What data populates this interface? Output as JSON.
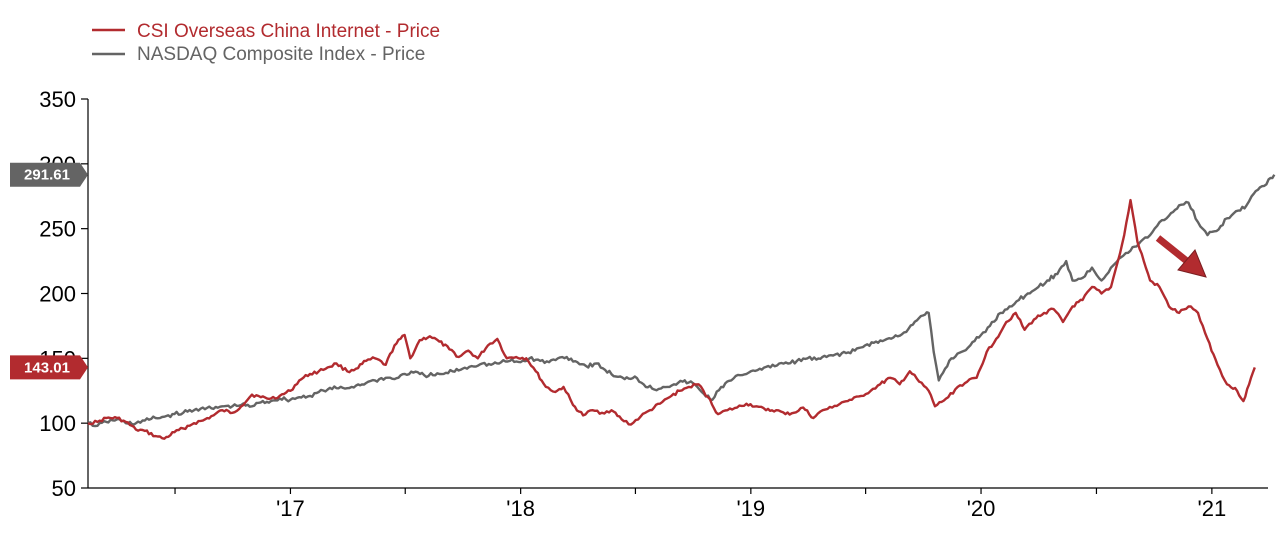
{
  "chart_data": {
    "type": "line",
    "title": "",
    "xlabel": "",
    "ylabel": "",
    "ylim": [
      50,
      350
    ],
    "yticks": [
      50,
      100,
      150,
      200,
      250,
      300,
      350
    ],
    "xlim": [
      "2016-02-15",
      "2021-03-31"
    ],
    "xtick_labels": [
      {
        "date": "2017-01-01",
        "label": "'17"
      },
      {
        "date": "2018-01-01",
        "label": "'18"
      },
      {
        "date": "2019-01-01",
        "label": "'19"
      },
      {
        "date": "2020-01-01",
        "label": "'20"
      },
      {
        "date": "2021-01-01",
        "label": "'21"
      }
    ],
    "x_minor_tick_dates": [
      "2016-07-02",
      "2017-07-02",
      "2018-07-02",
      "2019-07-02",
      "2020-07-02"
    ],
    "grid": false,
    "legend_position": "top-left",
    "series": [
      {
        "name": "CSI Overseas China Internet - Price",
        "color": "#b22b2f",
        "end_label": "143.01",
        "end_value": 143.01,
        "points": [
          [
            "2016-02-15",
            100
          ],
          [
            "2016-03-01",
            101
          ],
          [
            "2016-03-15",
            104
          ],
          [
            "2016-04-01",
            104
          ],
          [
            "2016-04-15",
            101
          ],
          [
            "2016-05-01",
            95
          ],
          [
            "2016-05-15",
            94
          ],
          [
            "2016-06-01",
            90
          ],
          [
            "2016-06-15",
            88
          ],
          [
            "2016-07-01",
            93
          ],
          [
            "2016-07-15",
            96
          ],
          [
            "2016-08-01",
            100
          ],
          [
            "2016-08-15",
            102
          ],
          [
            "2016-09-01",
            106
          ],
          [
            "2016-09-15",
            110
          ],
          [
            "2016-10-01",
            108
          ],
          [
            "2016-10-15",
            113
          ],
          [
            "2016-11-01",
            122
          ],
          [
            "2016-11-15",
            120
          ],
          [
            "2016-12-01",
            119
          ],
          [
            "2016-12-15",
            121
          ],
          [
            "2017-01-01",
            125
          ],
          [
            "2017-01-15",
            133
          ],
          [
            "2017-02-01",
            138
          ],
          [
            "2017-02-15",
            140
          ],
          [
            "2017-03-01",
            143
          ],
          [
            "2017-03-15",
            146
          ],
          [
            "2017-04-01",
            140
          ],
          [
            "2017-04-15",
            142
          ],
          [
            "2017-05-01",
            148
          ],
          [
            "2017-05-15",
            150
          ],
          [
            "2017-06-01",
            145
          ],
          [
            "2017-06-15",
            160
          ],
          [
            "2017-07-01",
            168
          ],
          [
            "2017-07-10",
            150
          ],
          [
            "2017-07-25",
            164
          ],
          [
            "2017-08-10",
            167
          ],
          [
            "2017-08-25",
            163
          ],
          [
            "2017-09-10",
            157
          ],
          [
            "2017-09-25",
            151
          ],
          [
            "2017-10-10",
            156
          ],
          [
            "2017-10-25",
            150
          ],
          [
            "2017-11-10",
            160
          ],
          [
            "2017-11-25",
            165
          ],
          [
            "2017-12-10",
            150
          ],
          [
            "2017-12-25",
            151
          ],
          [
            "2018-01-10",
            150
          ],
          [
            "2018-01-25",
            140
          ],
          [
            "2018-02-10",
            128
          ],
          [
            "2018-02-25",
            124
          ],
          [
            "2018-03-10",
            128
          ],
          [
            "2018-03-25",
            114
          ],
          [
            "2018-04-10",
            106
          ],
          [
            "2018-04-25",
            110
          ],
          [
            "2018-05-10",
            108
          ],
          [
            "2018-05-25",
            110
          ],
          [
            "2018-06-10",
            103
          ],
          [
            "2018-06-25",
            99
          ],
          [
            "2018-07-10",
            105
          ],
          [
            "2018-07-25",
            110
          ],
          [
            "2018-08-10",
            115
          ],
          [
            "2018-08-25",
            120
          ],
          [
            "2018-09-10",
            125
          ],
          [
            "2018-09-25",
            128
          ],
          [
            "2018-10-10",
            130
          ],
          [
            "2018-10-25",
            120
          ],
          [
            "2018-11-10",
            107
          ],
          [
            "2018-11-25",
            110
          ],
          [
            "2018-12-10",
            112
          ],
          [
            "2018-12-25",
            115
          ],
          [
            "2019-01-10",
            113
          ],
          [
            "2019-01-25",
            110
          ],
          [
            "2019-02-10",
            110
          ],
          [
            "2019-02-25",
            107
          ],
          [
            "2019-03-10",
            108
          ],
          [
            "2019-03-25",
            112
          ],
          [
            "2019-04-10",
            104
          ],
          [
            "2019-04-25",
            110
          ],
          [
            "2019-05-10",
            112
          ],
          [
            "2019-05-25",
            116
          ],
          [
            "2019-06-10",
            118
          ],
          [
            "2019-06-25",
            121
          ],
          [
            "2019-07-10",
            125
          ],
          [
            "2019-07-25",
            130
          ],
          [
            "2019-08-10",
            135
          ],
          [
            "2019-08-25",
            130
          ],
          [
            "2019-09-10",
            140
          ],
          [
            "2019-09-25",
            132
          ],
          [
            "2019-10-10",
            125
          ],
          [
            "2019-10-20",
            113
          ],
          [
            "2019-11-10",
            120
          ],
          [
            "2019-11-25",
            128
          ],
          [
            "2019-12-10",
            132
          ],
          [
            "2019-12-25",
            135
          ],
          [
            "2020-01-10",
            155
          ],
          [
            "2020-01-25",
            165
          ],
          [
            "2020-02-10",
            178
          ],
          [
            "2020-02-25",
            185
          ],
          [
            "2020-03-10",
            172
          ],
          [
            "2020-03-25",
            180
          ],
          [
            "2020-04-10",
            185
          ],
          [
            "2020-04-25",
            188
          ],
          [
            "2020-05-10",
            178
          ],
          [
            "2020-05-25",
            190
          ],
          [
            "2020-06-10",
            195
          ],
          [
            "2020-06-25",
            205
          ],
          [
            "2020-07-10",
            200
          ],
          [
            "2020-07-25",
            205
          ],
          [
            "2020-08-05",
            225
          ],
          [
            "2020-08-15",
            245
          ],
          [
            "2020-08-25",
            272
          ],
          [
            "2020-09-05",
            240
          ],
          [
            "2020-09-15",
            225
          ],
          [
            "2020-09-25",
            210
          ],
          [
            "2020-10-10",
            205
          ],
          [
            "2020-10-25",
            190
          ],
          [
            "2020-11-10",
            185
          ],
          [
            "2020-11-25",
            190
          ],
          [
            "2020-12-10",
            185
          ],
          [
            "2020-12-25",
            165
          ],
          [
            "2021-01-10",
            145
          ],
          [
            "2021-01-25",
            130
          ],
          [
            "2021-02-10",
            125
          ],
          [
            "2021-02-20",
            117
          ],
          [
            "2021-03-01",
            130
          ],
          [
            "2021-03-10",
            143.01
          ]
        ]
      },
      {
        "name": "NASDAQ Composite Index - Price",
        "color": "#646464",
        "end_label": "291.61",
        "end_value": 291.61,
        "points": [
          [
            "2016-02-15",
            100
          ],
          [
            "2016-03-01",
            98
          ],
          [
            "2016-03-15",
            101
          ],
          [
            "2016-04-01",
            103
          ],
          [
            "2016-04-15",
            100
          ],
          [
            "2016-05-01",
            100
          ],
          [
            "2016-05-15",
            102
          ],
          [
            "2016-06-01",
            104
          ],
          [
            "2016-06-15",
            105
          ],
          [
            "2016-07-01",
            107
          ],
          [
            "2016-07-15",
            108
          ],
          [
            "2016-08-01",
            110
          ],
          [
            "2016-08-15",
            112
          ],
          [
            "2016-09-01",
            111
          ],
          [
            "2016-09-15",
            113
          ],
          [
            "2016-10-01",
            113
          ],
          [
            "2016-10-15",
            114
          ],
          [
            "2016-11-01",
            113
          ],
          [
            "2016-11-15",
            116
          ],
          [
            "2016-12-01",
            117
          ],
          [
            "2016-12-15",
            119
          ],
          [
            "2017-01-01",
            118
          ],
          [
            "2017-01-15",
            120
          ],
          [
            "2017-02-01",
            121
          ],
          [
            "2017-02-15",
            124
          ],
          [
            "2017-03-01",
            126
          ],
          [
            "2017-03-15",
            127
          ],
          [
            "2017-04-01",
            127
          ],
          [
            "2017-04-15",
            129
          ],
          [
            "2017-05-01",
            131
          ],
          [
            "2017-05-15",
            133
          ],
          [
            "2017-06-01",
            135
          ],
          [
            "2017-06-15",
            134
          ],
          [
            "2017-07-01",
            138
          ],
          [
            "2017-07-15",
            139
          ],
          [
            "2017-08-01",
            137
          ],
          [
            "2017-08-15",
            137
          ],
          [
            "2017-09-01",
            138
          ],
          [
            "2017-09-15",
            140
          ],
          [
            "2017-10-01",
            142
          ],
          [
            "2017-10-15",
            144
          ],
          [
            "2017-11-01",
            146
          ],
          [
            "2017-11-15",
            145
          ],
          [
            "2017-12-01",
            147
          ],
          [
            "2017-12-15",
            148
          ],
          [
            "2018-01-01",
            147
          ],
          [
            "2018-01-15",
            150
          ],
          [
            "2018-02-01",
            148
          ],
          [
            "2018-02-15",
            147
          ],
          [
            "2018-03-01",
            150
          ],
          [
            "2018-03-15",
            151
          ],
          [
            "2018-04-01",
            147
          ],
          [
            "2018-04-15",
            144
          ],
          [
            "2018-05-01",
            146
          ],
          [
            "2018-05-15",
            141
          ],
          [
            "2018-06-01",
            136
          ],
          [
            "2018-06-15",
            134
          ],
          [
            "2018-07-01",
            136
          ],
          [
            "2018-07-15",
            130
          ],
          [
            "2018-08-01",
            126
          ],
          [
            "2018-08-15",
            128
          ],
          [
            "2018-09-01",
            130
          ],
          [
            "2018-09-15",
            132
          ],
          [
            "2018-10-01",
            131
          ],
          [
            "2018-10-15",
            124
          ],
          [
            "2018-11-01",
            118
          ],
          [
            "2018-11-15",
            128
          ],
          [
            "2018-12-01",
            133
          ],
          [
            "2018-12-15",
            137
          ],
          [
            "2019-01-01",
            140
          ],
          [
            "2019-01-15",
            142
          ],
          [
            "2019-02-01",
            143
          ],
          [
            "2019-02-15",
            146
          ],
          [
            "2019-03-01",
            146
          ],
          [
            "2019-03-15",
            148
          ],
          [
            "2019-04-01",
            150
          ],
          [
            "2019-04-15",
            149
          ],
          [
            "2019-05-01",
            151
          ],
          [
            "2019-05-15",
            153
          ],
          [
            "2019-06-01",
            154
          ],
          [
            "2019-06-15",
            156
          ],
          [
            "2019-07-01",
            160
          ],
          [
            "2019-07-15",
            162
          ],
          [
            "2019-08-01",
            164
          ],
          [
            "2019-08-15",
            166
          ],
          [
            "2019-09-01",
            170
          ],
          [
            "2019-09-15",
            176
          ],
          [
            "2019-10-01",
            183
          ],
          [
            "2019-10-10",
            185
          ],
          [
            "2019-10-18",
            155
          ],
          [
            "2019-10-26",
            133
          ],
          [
            "2019-11-05",
            142
          ],
          [
            "2019-11-15",
            150
          ],
          [
            "2019-12-01",
            155
          ],
          [
            "2019-12-15",
            160
          ],
          [
            "2020-01-01",
            168
          ],
          [
            "2020-01-15",
            175
          ],
          [
            "2020-02-01",
            185
          ],
          [
            "2020-02-15",
            190
          ],
          [
            "2020-03-01",
            195
          ],
          [
            "2020-03-15",
            200
          ],
          [
            "2020-04-01",
            205
          ],
          [
            "2020-04-15",
            210
          ],
          [
            "2020-05-01",
            215
          ],
          [
            "2020-05-15",
            225
          ],
          [
            "2020-05-25",
            210
          ],
          [
            "2020-06-10",
            212
          ],
          [
            "2020-06-25",
            220
          ],
          [
            "2020-07-10",
            210
          ],
          [
            "2020-07-25",
            220
          ],
          [
            "2020-08-10",
            228
          ],
          [
            "2020-08-25",
            233
          ],
          [
            "2020-09-10",
            240
          ],
          [
            "2020-09-25",
            245
          ],
          [
            "2020-10-10",
            255
          ],
          [
            "2020-10-25",
            260
          ],
          [
            "2020-11-10",
            268
          ],
          [
            "2020-11-25",
            270
          ],
          [
            "2020-12-10",
            255
          ],
          [
            "2020-12-25",
            245
          ],
          [
            "2021-01-05",
            248
          ],
          [
            "2021-01-15",
            252
          ],
          [
            "2021-01-25",
            258
          ],
          [
            "2021-02-05",
            262
          ],
          [
            "2021-02-15",
            264
          ],
          [
            "2021-02-25",
            268
          ],
          [
            "2021-03-05",
            275
          ],
          [
            "2021-03-15",
            280
          ],
          [
            "2021-03-25",
            283
          ],
          [
            "2021-04-01",
            288
          ],
          [
            "2021-04-10",
            291.61
          ]
        ]
      }
    ]
  }
}
